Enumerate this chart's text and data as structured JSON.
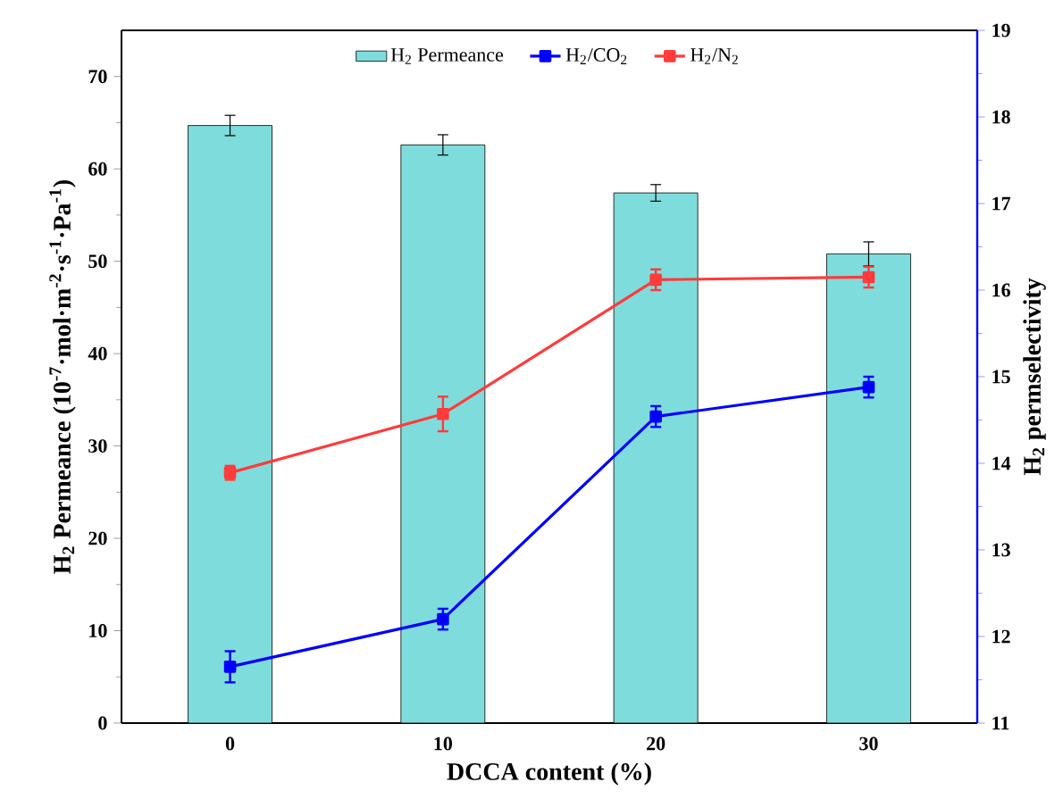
{
  "chart_data": {
    "type": "bar",
    "categories": [
      "0",
      "10",
      "20",
      "30"
    ],
    "xlabel": "DCCA content (%)",
    "ylabel": "H$_{2}$ Permeance (10$^{-7}$·mol·m$^{-2}$·s$^{-1}$·Pa$^{-1}$)",
    "y2label": "H$_{2}$ permselectivity",
    "ylim": [
      0,
      75
    ],
    "yticks": [
      0,
      10,
      20,
      30,
      40,
      50,
      60,
      70
    ],
    "y2lim": [
      11,
      19
    ],
    "y2ticks": [
      11,
      12,
      13,
      14,
      15,
      16,
      17,
      18,
      19
    ],
    "legend": "top",
    "series": [
      {
        "name": "H$_{2}$ Permeance",
        "color": "#7fdcdc",
        "values": [
          64.7,
          62.6,
          57.4,
          50.8
        ],
        "errors": [
          1.1,
          1.1,
          0.9,
          1.3
        ]
      },
      {
        "name": "H$_{2}$/CO$_{2}$",
        "type": "line",
        "axis": "y2",
        "marker": "square",
        "color": "#0000ff",
        "values": [
          11.65,
          12.2,
          14.54,
          14.88
        ],
        "errors": [
          0.18,
          0.12,
          0.12,
          0.12
        ]
      },
      {
        "name": "H$_{2}$/N$_{2}$",
        "type": "line",
        "axis": "y2",
        "marker": "square",
        "color": "#ff3b3b",
        "values": [
          13.89,
          14.57,
          16.12,
          16.15
        ],
        "errors": [
          0.08,
          0.2,
          0.12,
          0.12
        ]
      }
    ]
  }
}
